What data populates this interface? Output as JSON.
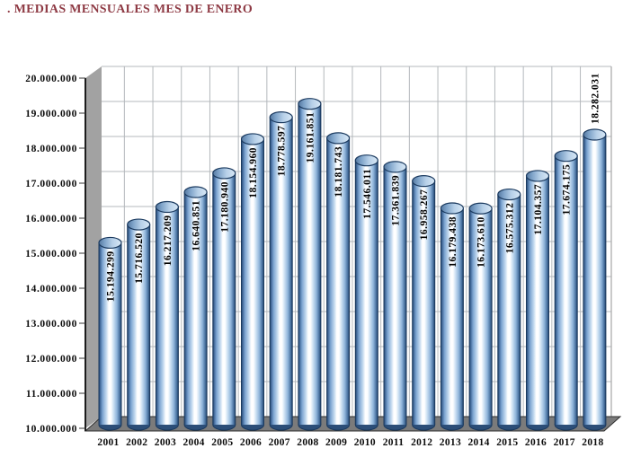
{
  "title": ". MEDIAS MENSUALES MES DE ENERO",
  "chart_data": {
    "type": "bar",
    "subtype": "3d-cylinder",
    "title": ". MEDIAS MENSUALES MES DE ENERO",
    "xlabel": "",
    "ylabel": "",
    "ylim": [
      10000000,
      20000000
    ],
    "y_tick_interval": 1000000,
    "y_tick_labels": [
      "20.000.000",
      "19.000.000",
      "18.000.000",
      "17.000.000",
      "16.000.000",
      "15.000.000",
      "14.000.000",
      "13.000.000",
      "12.000.000",
      "11.000.000",
      "10.000.000"
    ],
    "grid": true,
    "legend": false,
    "categories": [
      "2001",
      "2002",
      "2003",
      "2004",
      "2005",
      "2006",
      "2007",
      "2008",
      "2009",
      "2010",
      "2011",
      "2012",
      "2013",
      "2014",
      "2015",
      "2016",
      "2017",
      "2018"
    ],
    "values": [
      15194299,
      15716520,
      16217209,
      16640851,
      17180940,
      18154960,
      18778597,
      19161851,
      18181743,
      17546011,
      17361839,
      16958267,
      16179438,
      16173610,
      16575312,
      17104357,
      17674175,
      18282031
    ],
    "data_labels": [
      "15.194.299",
      "15.716.520",
      "16.217.209",
      "16.640.851",
      "17.180.940",
      "18.154.960",
      "18.778.597",
      "19.161.851",
      "18.181.743",
      "17.546.011",
      "17.361.839",
      "16.958.267",
      "16.179.438",
      "16.173.610",
      "16.575.312",
      "17.104.357",
      "17.674.175",
      "18.282.031"
    ],
    "colors": {
      "title": "#8e3a44",
      "text": "#0d0d0d",
      "gridline": "#b4b8bc",
      "wall": "#a2a2a2",
      "floor": "#7b7b7b",
      "floor_edge": "#2e2e2e",
      "axis_line": "#1c1c1c",
      "bar_outline": "#1b3a5f",
      "bar_base": "#2c4e78",
      "bar_body": [
        "#1d3d63",
        "#3d6494",
        "#7ba3d0",
        "#c2d9ef",
        "#ffffff",
        "#fdfeff",
        "#cde1f3",
        "#8fb4da",
        "#48719f",
        "#1d3d63"
      ],
      "bar_top": [
        "#54779f",
        "#7da2c8",
        "#b7d0e8",
        "#d8e8f6"
      ]
    }
  }
}
